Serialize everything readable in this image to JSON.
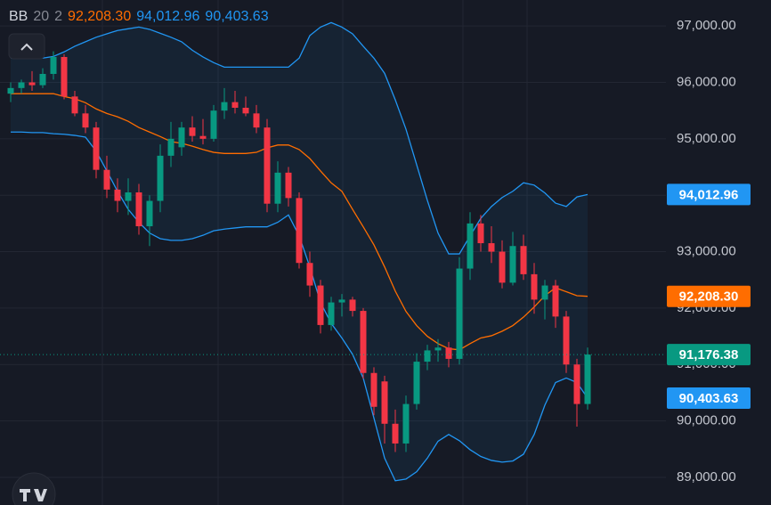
{
  "chart_data": {
    "type": "candlestick",
    "indicator": {
      "name": "BB",
      "length": 20,
      "mult": 2
    },
    "up_color": "#089981",
    "down_color": "#f23645",
    "ylim": [
      88510,
      97460
    ],
    "yticks": [
      {
        "value": 89000,
        "label": "89,000.00"
      },
      {
        "value": 90000,
        "label": "90,000.00"
      },
      {
        "value": 91000,
        "label": "91,000.00"
      },
      {
        "value": 92000,
        "label": "92,000.00"
      },
      {
        "value": 93000,
        "label": "93,000.00"
      },
      {
        "value": 94000,
        "label": "94,000.00"
      },
      {
        "value": 95000,
        "label": "95,000.00"
      },
      {
        "value": 96000,
        "label": "96,000.00"
      },
      {
        "value": 97000,
        "label": "97,000.00"
      }
    ],
    "grid": true,
    "last_price": {
      "value": 91176.38,
      "label": "91,176.38"
    },
    "candles": {
      "open": [
        95800,
        95900,
        96000,
        95950,
        96150,
        96450,
        95750,
        95450,
        95200,
        94450,
        94100,
        93900,
        94050,
        93450,
        93900,
        94700,
        94850,
        95200,
        95050,
        95000,
        95500,
        95650,
        95550,
        95450,
        95200,
        93850,
        94400,
        93950,
        92800,
        92400,
        91700,
        92100,
        92150,
        91950,
        90850,
        90700,
        89950,
        89600,
        90300,
        91050,
        91250,
        91300,
        91100,
        92700,
        93500,
        93150,
        93000,
        92450,
        93100,
        92600,
        92150,
        92400,
        91850,
        91000,
        90300
      ],
      "high": [
        96000,
        96050,
        96200,
        96250,
        96550,
        96500,
        95850,
        95600,
        95300,
        94700,
        94300,
        94300,
        94200,
        94000,
        94900,
        95300,
        95300,
        95400,
        95350,
        95600,
        95900,
        95850,
        95750,
        95600,
        95350,
        94600,
        94500,
        94050,
        93000,
        92500,
        92200,
        92250,
        92200,
        92000,
        90950,
        90800,
        90200,
        90450,
        91200,
        91350,
        91450,
        91400,
        92900,
        93700,
        93650,
        93450,
        93200,
        93350,
        93300,
        92800,
        92500,
        92500,
        91950,
        91100,
        91300
      ],
      "low": [
        95650,
        95800,
        95850,
        95900,
        96050,
        95700,
        95400,
        95100,
        94300,
        93950,
        93700,
        93650,
        93300,
        93100,
        93700,
        94500,
        94700,
        94950,
        94900,
        94950,
        95350,
        95450,
        95400,
        95100,
        93700,
        93700,
        93800,
        92700,
        92200,
        91550,
        91600,
        91850,
        91850,
        90750,
        90100,
        89600,
        89450,
        89450,
        90200,
        90900,
        91050,
        90950,
        91000,
        92500,
        93000,
        92800,
        92350,
        92400,
        92500,
        91900,
        91800,
        91650,
        90850,
        89900,
        90200
      ],
      "close": [
        95900,
        96000,
        95950,
        96150,
        96450,
        95750,
        95450,
        95200,
        94450,
        94100,
        93900,
        94050,
        93450,
        93900,
        94700,
        95000,
        95200,
        95050,
        95000,
        95500,
        95650,
        95550,
        95450,
        95200,
        93850,
        94400,
        93950,
        92800,
        92400,
        91700,
        92100,
        92150,
        91950,
        90850,
        90250,
        89950,
        89600,
        90300,
        91050,
        91250,
        91300,
        91100,
        92700,
        93500,
        93150,
        93000,
        92450,
        93100,
        92600,
        92150,
        92400,
        91850,
        91000,
        90300,
        91176.38
      ]
    },
    "series": [
      {
        "color": "#ff6d00",
        "value_label": "92,208.30",
        "values": [
          95800,
          95800,
          95800,
          95800,
          95800,
          95750,
          95710,
          95640,
          95530,
          95450,
          95390,
          95310,
          95200,
          95120,
          95040,
          94950,
          94920,
          94870,
          94810,
          94760,
          94740,
          94740,
          94740,
          94760,
          94840,
          94890,
          94890,
          94810,
          94650,
          94430,
          94220,
          94070,
          93750,
          93440,
          93120,
          92730,
          92300,
          91940,
          91690,
          91500,
          91370,
          91280,
          91260,
          91370,
          91470,
          91510,
          91590,
          91690,
          91840,
          92020,
          92220,
          92360,
          92290,
          92220,
          92208.3
        ]
      },
      {
        "color": "#2196f3",
        "value_label": "94,012.96",
        "values": [
          96430,
          96430,
          96430,
          96430,
          96460,
          96540,
          96640,
          96720,
          96800,
          96860,
          96920,
          96950,
          96980,
          96940,
          96870,
          96800,
          96720,
          96570,
          96450,
          96350,
          96270,
          96270,
          96270,
          96270,
          96270,
          96270,
          96270,
          96430,
          96830,
          96980,
          97060,
          96980,
          96860,
          96640,
          96430,
          96160,
          95690,
          95170,
          94540,
          93910,
          93330,
          92960,
          92960,
          93280,
          93590,
          93800,
          93960,
          94070,
          94220,
          94180,
          94040,
          93860,
          93800,
          93970,
          94012.96
        ]
      },
      {
        "color": "#2196f3",
        "value_label": "90,403.63",
        "values": [
          95120,
          95120,
          95110,
          95110,
          95090,
          95080,
          95060,
          95030,
          94780,
          94430,
          94070,
          93750,
          93520,
          93330,
          93230,
          93200,
          93200,
          93230,
          93290,
          93370,
          93400,
          93420,
          93440,
          93440,
          93440,
          93520,
          93650,
          93280,
          92730,
          92100,
          91730,
          91470,
          91180,
          90760,
          90050,
          89340,
          88940,
          88970,
          89100,
          89340,
          89640,
          89760,
          89650,
          89490,
          89370,
          89300,
          89270,
          89290,
          89410,
          89760,
          90280,
          90680,
          90760,
          90680,
          90403.63
        ]
      }
    ]
  }
}
